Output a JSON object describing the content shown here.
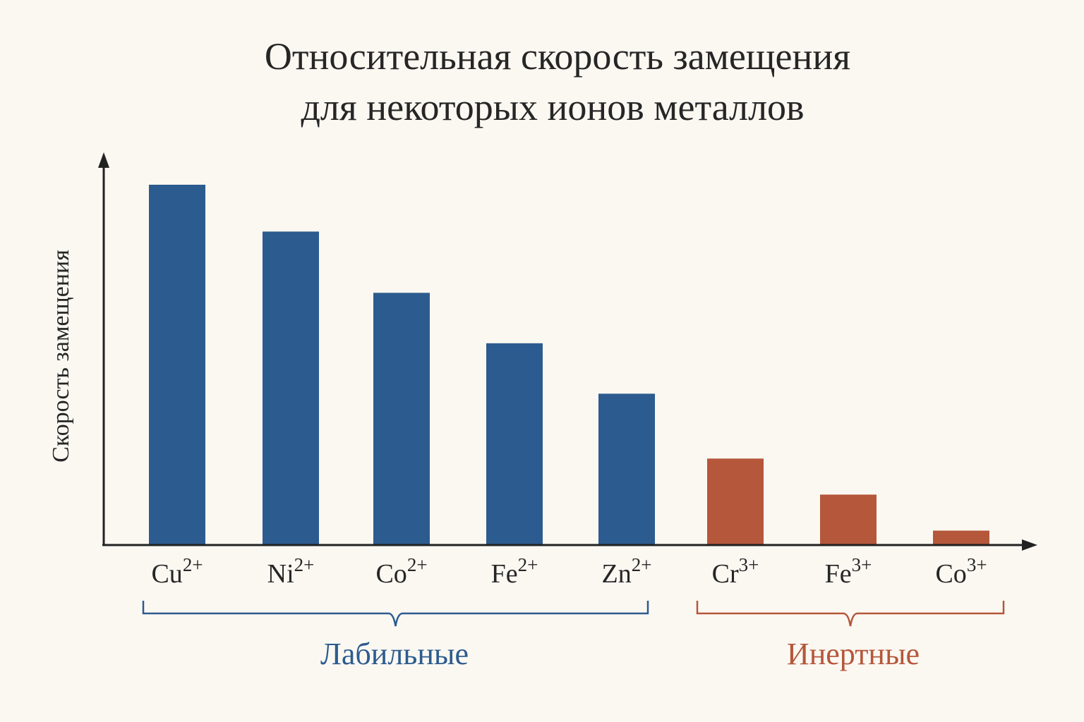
{
  "chart_data": {
    "type": "bar",
    "title_lines": [
      "Относительная скорость замещения",
      "для некоторых ионов металлов"
    ],
    "xlabel": "",
    "ylabel": "Скорость замещения",
    "categories": [
      {
        "base": "Cu",
        "charge": "2+"
      },
      {
        "base": "Ni",
        "charge": "2+"
      },
      {
        "base": "Co",
        "charge": "2+"
      },
      {
        "base": "Fe",
        "charge": "2+"
      },
      {
        "base": "Zn",
        "charge": "2+"
      },
      {
        "base": "Cr",
        "charge": "3+"
      },
      {
        "base": "Fe",
        "charge": "3+"
      },
      {
        "base": "Co",
        "charge": "3+"
      }
    ],
    "values": [
      100,
      87,
      70,
      56,
      42,
      24,
      14,
      4
    ],
    "ylim": [
      0,
      100
    ],
    "grid": false,
    "groups": [
      {
        "label": "Лабильные",
        "from": 0,
        "to": 4,
        "color": "#2c5b8f"
      },
      {
        "label": "Инертные",
        "from": 5,
        "to": 7,
        "color": "#b5573b"
      }
    ]
  }
}
